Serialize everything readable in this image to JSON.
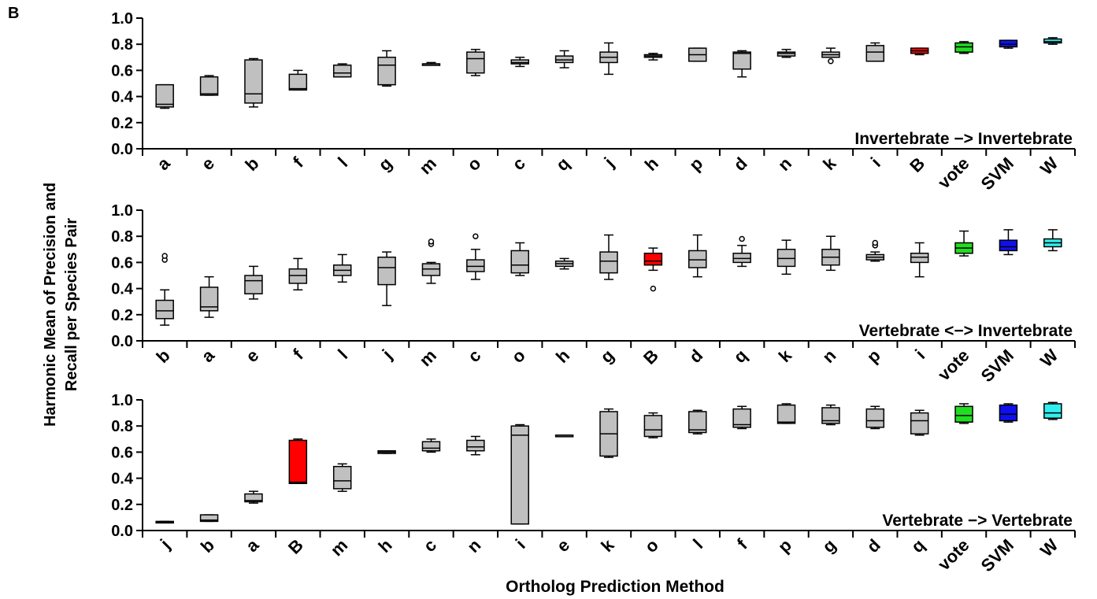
{
  "panel_label": "B",
  "ylabel_line1": "Harmonic Mean of Precision and",
  "ylabel_line2": "Recall per Species Pair",
  "xlabel": "Ortholog Prediction Method",
  "colors": {
    "default": "#c0c0c0",
    "B": "#ff0000",
    "vote": "#22dd22",
    "SVM": "#1010ee",
    "W": "#33eeee"
  },
  "chart_data": [
    {
      "type": "box",
      "annotation": "Invertebrate −> Invertebrate",
      "ylim": [
        0,
        1
      ],
      "yticks": [
        "0.0",
        "0.2",
        "0.4",
        "0.6",
        "0.8",
        "1.0"
      ],
      "categories": [
        "a",
        "e",
        "b",
        "f",
        "l",
        "g",
        "m",
        "o",
        "c",
        "q",
        "j",
        "h",
        "p",
        "d",
        "n",
        "k",
        "i",
        "B",
        "vote",
        "SVM",
        "W"
      ],
      "boxes": [
        {
          "wl": 0.31,
          "q1": 0.32,
          "med": 0.34,
          "q3": 0.49,
          "wh": 0.49,
          "out": []
        },
        {
          "wl": 0.41,
          "q1": 0.41,
          "med": 0.42,
          "q3": 0.55,
          "wh": 0.56,
          "out": []
        },
        {
          "wl": 0.32,
          "q1": 0.35,
          "med": 0.42,
          "q3": 0.68,
          "wh": 0.69,
          "out": []
        },
        {
          "wl": 0.45,
          "q1": 0.45,
          "med": 0.46,
          "q3": 0.57,
          "wh": 0.6,
          "out": []
        },
        {
          "wl": 0.55,
          "q1": 0.55,
          "med": 0.58,
          "q3": 0.64,
          "wh": 0.65,
          "out": []
        },
        {
          "wl": 0.48,
          "q1": 0.49,
          "med": 0.64,
          "q3": 0.7,
          "wh": 0.75,
          "out": []
        },
        {
          "wl": 0.65,
          "q1": 0.65,
          "med": 0.65,
          "q3": 0.65,
          "wh": 0.66,
          "out": []
        },
        {
          "wl": 0.56,
          "q1": 0.58,
          "med": 0.69,
          "q3": 0.74,
          "wh": 0.76,
          "out": []
        },
        {
          "wl": 0.63,
          "q1": 0.65,
          "med": 0.66,
          "q3": 0.68,
          "wh": 0.7,
          "out": []
        },
        {
          "wl": 0.62,
          "q1": 0.66,
          "med": 0.68,
          "q3": 0.71,
          "wh": 0.75,
          "out": []
        },
        {
          "wl": 0.57,
          "q1": 0.66,
          "med": 0.7,
          "q3": 0.74,
          "wh": 0.81,
          "out": []
        },
        {
          "wl": 0.68,
          "q1": 0.7,
          "med": 0.71,
          "q3": 0.72,
          "wh": 0.73,
          "out": []
        },
        {
          "wl": 0.67,
          "q1": 0.67,
          "med": 0.72,
          "q3": 0.77,
          "wh": 0.77,
          "out": []
        },
        {
          "wl": 0.55,
          "q1": 0.61,
          "med": 0.73,
          "q3": 0.74,
          "wh": 0.75,
          "out": []
        },
        {
          "wl": 0.7,
          "q1": 0.71,
          "med": 0.73,
          "q3": 0.74,
          "wh": 0.76,
          "out": []
        },
        {
          "wl": 0.7,
          "q1": 0.7,
          "med": 0.72,
          "q3": 0.74,
          "wh": 0.77,
          "out": [
            0.67
          ]
        },
        {
          "wl": 0.67,
          "q1": 0.67,
          "med": 0.74,
          "q3": 0.79,
          "wh": 0.81,
          "out": []
        },
        {
          "wl": 0.72,
          "q1": 0.73,
          "med": 0.75,
          "q3": 0.77,
          "wh": 0.77,
          "out": []
        },
        {
          "wl": 0.73,
          "q1": 0.74,
          "med": 0.78,
          "q3": 0.81,
          "wh": 0.82,
          "out": []
        },
        {
          "wl": 0.77,
          "q1": 0.78,
          "med": 0.8,
          "q3": 0.83,
          "wh": 0.83,
          "out": []
        },
        {
          "wl": 0.8,
          "q1": 0.81,
          "med": 0.82,
          "q3": 0.84,
          "wh": 0.85,
          "out": []
        }
      ]
    },
    {
      "type": "box",
      "annotation": "Vertebrate <−> Invertebrate",
      "ylim": [
        0,
        1
      ],
      "yticks": [
        "0.0",
        "0.2",
        "0.4",
        "0.6",
        "0.8",
        "1.0"
      ],
      "categories": [
        "b",
        "a",
        "e",
        "f",
        "l",
        "j",
        "m",
        "c",
        "o",
        "h",
        "g",
        "B",
        "d",
        "q",
        "k",
        "n",
        "p",
        "i",
        "vote",
        "SVM",
        "W"
      ],
      "boxes": [
        {
          "wl": 0.12,
          "q1": 0.17,
          "med": 0.23,
          "q3": 0.31,
          "wh": 0.39,
          "out": [
            0.62,
            0.65
          ]
        },
        {
          "wl": 0.18,
          "q1": 0.23,
          "med": 0.26,
          "q3": 0.41,
          "wh": 0.49,
          "out": []
        },
        {
          "wl": 0.32,
          "q1": 0.36,
          "med": 0.46,
          "q3": 0.5,
          "wh": 0.57,
          "out": []
        },
        {
          "wl": 0.39,
          "q1": 0.44,
          "med": 0.5,
          "q3": 0.55,
          "wh": 0.63,
          "out": []
        },
        {
          "wl": 0.45,
          "q1": 0.5,
          "med": 0.54,
          "q3": 0.58,
          "wh": 0.66,
          "out": []
        },
        {
          "wl": 0.27,
          "q1": 0.43,
          "med": 0.56,
          "q3": 0.64,
          "wh": 0.68,
          "out": []
        },
        {
          "wl": 0.44,
          "q1": 0.5,
          "med": 0.55,
          "q3": 0.59,
          "wh": 0.6,
          "out": [
            0.74,
            0.76
          ]
        },
        {
          "wl": 0.47,
          "q1": 0.53,
          "med": 0.57,
          "q3": 0.62,
          "wh": 0.7,
          "out": [
            0.8
          ]
        },
        {
          "wl": 0.5,
          "q1": 0.52,
          "med": 0.58,
          "q3": 0.69,
          "wh": 0.75,
          "out": []
        },
        {
          "wl": 0.55,
          "q1": 0.57,
          "med": 0.59,
          "q3": 0.61,
          "wh": 0.63,
          "out": []
        },
        {
          "wl": 0.47,
          "q1": 0.52,
          "med": 0.61,
          "q3": 0.68,
          "wh": 0.81,
          "out": []
        },
        {
          "wl": 0.54,
          "q1": 0.58,
          "med": 0.61,
          "q3": 0.67,
          "wh": 0.71,
          "out": [
            0.4
          ]
        },
        {
          "wl": 0.49,
          "q1": 0.56,
          "med": 0.62,
          "q3": 0.69,
          "wh": 0.81,
          "out": []
        },
        {
          "wl": 0.57,
          "q1": 0.6,
          "med": 0.63,
          "q3": 0.67,
          "wh": 0.73,
          "out": [
            0.78
          ]
        },
        {
          "wl": 0.51,
          "q1": 0.57,
          "med": 0.63,
          "q3": 0.7,
          "wh": 0.77,
          "out": []
        },
        {
          "wl": 0.54,
          "q1": 0.58,
          "med": 0.64,
          "q3": 0.7,
          "wh": 0.8,
          "out": []
        },
        {
          "wl": 0.61,
          "q1": 0.62,
          "med": 0.64,
          "q3": 0.66,
          "wh": 0.68,
          "out": [
            0.73,
            0.75
          ]
        },
        {
          "wl": 0.49,
          "q1": 0.6,
          "med": 0.64,
          "q3": 0.67,
          "wh": 0.75,
          "out": []
        },
        {
          "wl": 0.65,
          "q1": 0.67,
          "med": 0.71,
          "q3": 0.75,
          "wh": 0.84,
          "out": []
        },
        {
          "wl": 0.66,
          "q1": 0.69,
          "med": 0.72,
          "q3": 0.77,
          "wh": 0.85,
          "out": []
        },
        {
          "wl": 0.69,
          "q1": 0.72,
          "med": 0.75,
          "q3": 0.78,
          "wh": 0.85,
          "out": []
        }
      ]
    },
    {
      "type": "box",
      "annotation": "Vertebrate −> Vertebrate",
      "ylim": [
        0,
        1
      ],
      "yticks": [
        "0.0",
        "0.2",
        "0.4",
        "0.6",
        "0.8",
        "1.0"
      ],
      "categories": [
        "j",
        "b",
        "a",
        "B",
        "m",
        "h",
        "c",
        "n",
        "i",
        "e",
        "k",
        "o",
        "l",
        "f",
        "p",
        "g",
        "d",
        "q",
        "vote",
        "SVM",
        "W"
      ],
      "boxes": [
        {
          "wl": 0.06,
          "q1": 0.06,
          "med": 0.065,
          "q3": 0.07,
          "wh": 0.07,
          "out": []
        },
        {
          "wl": 0.07,
          "q1": 0.07,
          "med": 0.08,
          "q3": 0.12,
          "wh": 0.12,
          "out": []
        },
        {
          "wl": 0.21,
          "q1": 0.22,
          "med": 0.23,
          "q3": 0.28,
          "wh": 0.3,
          "out": []
        },
        {
          "wl": 0.36,
          "q1": 0.36,
          "med": 0.37,
          "q3": 0.69,
          "wh": 0.7,
          "out": []
        },
        {
          "wl": 0.3,
          "q1": 0.32,
          "med": 0.38,
          "q3": 0.49,
          "wh": 0.51,
          "out": []
        },
        {
          "wl": 0.59,
          "q1": 0.59,
          "med": 0.6,
          "q3": 0.61,
          "wh": 0.61,
          "out": []
        },
        {
          "wl": 0.6,
          "q1": 0.61,
          "med": 0.63,
          "q3": 0.68,
          "wh": 0.7,
          "out": []
        },
        {
          "wl": 0.58,
          "q1": 0.61,
          "med": 0.64,
          "q3": 0.69,
          "wh": 0.72,
          "out": []
        },
        {
          "wl": 0.05,
          "q1": 0.05,
          "med": 0.73,
          "q3": 0.8,
          "wh": 0.81,
          "out": []
        },
        {
          "wl": 0.72,
          "q1": 0.72,
          "med": 0.73,
          "q3": 0.73,
          "wh": 0.73,
          "out": []
        },
        {
          "wl": 0.56,
          "q1": 0.57,
          "med": 0.74,
          "q3": 0.91,
          "wh": 0.93,
          "out": []
        },
        {
          "wl": 0.71,
          "q1": 0.72,
          "med": 0.77,
          "q3": 0.88,
          "wh": 0.9,
          "out": []
        },
        {
          "wl": 0.74,
          "q1": 0.75,
          "med": 0.77,
          "q3": 0.91,
          "wh": 0.92,
          "out": []
        },
        {
          "wl": 0.78,
          "q1": 0.79,
          "med": 0.81,
          "q3": 0.93,
          "wh": 0.95,
          "out": []
        },
        {
          "wl": 0.82,
          "q1": 0.82,
          "med": 0.83,
          "q3": 0.96,
          "wh": 0.97,
          "out": []
        },
        {
          "wl": 0.81,
          "q1": 0.82,
          "med": 0.84,
          "q3": 0.94,
          "wh": 0.96,
          "out": []
        },
        {
          "wl": 0.78,
          "q1": 0.79,
          "med": 0.84,
          "q3": 0.93,
          "wh": 0.95,
          "out": []
        },
        {
          "wl": 0.73,
          "q1": 0.74,
          "med": 0.84,
          "q3": 0.9,
          "wh": 0.92,
          "out": []
        },
        {
          "wl": 0.82,
          "q1": 0.83,
          "med": 0.88,
          "q3": 0.95,
          "wh": 0.97,
          "out": []
        },
        {
          "wl": 0.83,
          "q1": 0.84,
          "med": 0.89,
          "q3": 0.96,
          "wh": 0.97,
          "out": []
        },
        {
          "wl": 0.85,
          "q1": 0.86,
          "med": 0.9,
          "q3": 0.97,
          "wh": 0.98,
          "out": []
        }
      ]
    }
  ]
}
